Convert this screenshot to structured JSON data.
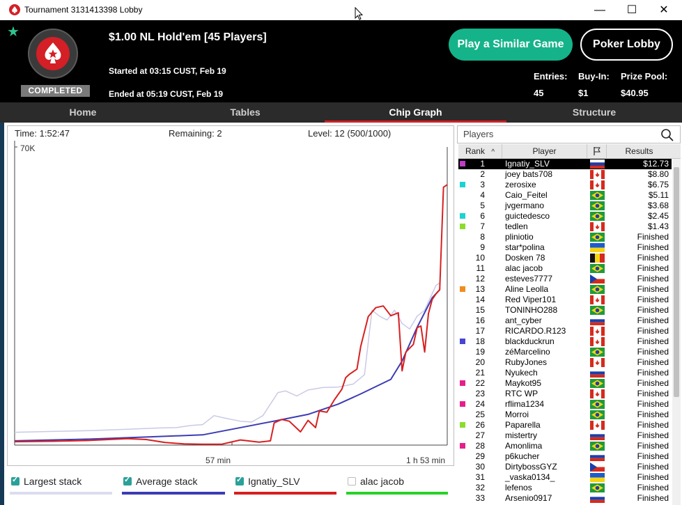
{
  "window": {
    "title": "Tournament 3131413398 Lobby"
  },
  "header": {
    "badge": "COMPLETED",
    "title": "$1.00 NL Hold'em [45 Players]",
    "started": "Started at 03:15 CUST, Feb 19",
    "ended": "Ended at 05:19 CUST, Feb 19",
    "play_similar": "Play a Similar Game",
    "poker_lobby": "Poker Lobby",
    "entries_label": "Entries:",
    "entries": "45",
    "buyin_label": "Buy-In:",
    "buyin": "$1",
    "prizepool_label": "Prize Pool:",
    "prizepool": "$40.95"
  },
  "tabs": [
    "Home",
    "Tables",
    "Chip Graph",
    "Structure"
  ],
  "active_tab": "Chip Graph",
  "chart_header": {
    "time": "Time: 1:52:47",
    "remaining": "Remaining: 2",
    "level": "Level: 12 (500/1000)"
  },
  "chart_data": {
    "type": "line",
    "ytick": "70K",
    "ymax": 70000,
    "xticks": [
      "57 min",
      "1 h 53 min"
    ],
    "xmax": 113,
    "series": [
      {
        "name": "Largest stack",
        "color": "#c9c9e6",
        "points": [
          [
            0,
            3000
          ],
          [
            10,
            3200
          ],
          [
            20,
            3400
          ],
          [
            30,
            3700
          ],
          [
            38,
            4000
          ],
          [
            43,
            4100
          ],
          [
            47,
            4600
          ],
          [
            50,
            4800
          ],
          [
            53,
            6900
          ],
          [
            56,
            6300
          ],
          [
            60,
            5600
          ],
          [
            63,
            5400
          ],
          [
            66,
            6900
          ],
          [
            70,
            12300
          ],
          [
            72,
            12700
          ],
          [
            75,
            11500
          ],
          [
            78,
            12900
          ],
          [
            82,
            13500
          ],
          [
            86,
            13600
          ],
          [
            90,
            14300
          ],
          [
            93,
            16500
          ],
          [
            95,
            31600
          ],
          [
            97,
            30200
          ],
          [
            99,
            29300
          ],
          [
            101,
            31600
          ],
          [
            103,
            28500
          ],
          [
            105,
            27200
          ],
          [
            107,
            30200
          ],
          [
            109,
            31600
          ],
          [
            111,
            35500
          ],
          [
            112,
            37400
          ],
          [
            113,
            38000
          ]
        ]
      },
      {
        "name": "Average stack",
        "color": "#3c3cb4",
        "points": [
          [
            0,
            1000
          ],
          [
            20,
            1400
          ],
          [
            35,
            1900
          ],
          [
            50,
            2400
          ],
          [
            63,
            4600
          ],
          [
            70,
            5800
          ],
          [
            78,
            7200
          ],
          [
            86,
            9600
          ],
          [
            92,
            12000
          ],
          [
            100,
            15400
          ],
          [
            103,
            19700
          ],
          [
            107,
            27600
          ],
          [
            111,
            34500
          ],
          [
            113,
            36400
          ]
        ]
      },
      {
        "name": "Ignatiy_SLV",
        "color": "#d81f1f",
        "points": [
          [
            0,
            800
          ],
          [
            10,
            900
          ],
          [
            20,
            1100
          ],
          [
            30,
            1500
          ],
          [
            35,
            1300
          ],
          [
            40,
            600
          ],
          [
            45,
            300
          ],
          [
            50,
            200
          ],
          [
            55,
            200
          ],
          [
            60,
            1200
          ],
          [
            65,
            700
          ],
          [
            68,
            1000
          ],
          [
            69,
            5200
          ],
          [
            71,
            6000
          ],
          [
            73,
            5600
          ],
          [
            76,
            3100
          ],
          [
            78,
            5800
          ],
          [
            80,
            4100
          ],
          [
            81,
            8000
          ],
          [
            83,
            7700
          ],
          [
            85,
            10600
          ],
          [
            87,
            13100
          ],
          [
            88,
            15800
          ],
          [
            89,
            16600
          ],
          [
            91,
            17800
          ],
          [
            92,
            23100
          ],
          [
            94,
            30100
          ],
          [
            96,
            32200
          ],
          [
            98,
            32600
          ],
          [
            100,
            30300
          ],
          [
            102,
            31000
          ],
          [
            103,
            17400
          ],
          [
            104,
            21800
          ],
          [
            106,
            23600
          ],
          [
            107,
            27500
          ],
          [
            108,
            27900
          ],
          [
            109,
            21800
          ],
          [
            110,
            30800
          ],
          [
            111,
            34100
          ],
          [
            112,
            35400
          ],
          [
            113,
            36400
          ],
          [
            114,
            60400
          ],
          [
            115,
            61000
          ]
        ]
      }
    ]
  },
  "legend": [
    {
      "label": "Largest stack",
      "checked": true,
      "color": "#dcdcf0"
    },
    {
      "label": "Average stack",
      "checked": true,
      "color": "#3c3cb4"
    },
    {
      "label": "Ignatiy_SLV",
      "checked": true,
      "color": "#d81f1f"
    },
    {
      "label": "alac jacob",
      "checked": false,
      "color": "#27d327"
    }
  ],
  "players": {
    "search_label": "Players",
    "col_rank": "Rank",
    "col_player": "Player",
    "col_results": "Results",
    "rows": [
      {
        "rank": "1",
        "name": "Ignatiy_SLV",
        "flag": "ru",
        "result": "$12.73",
        "color": "#c03cc8",
        "selected": true
      },
      {
        "rank": "2",
        "name": "joey bats708",
        "flag": "ca",
        "result": "$8.80",
        "color": ""
      },
      {
        "rank": "3",
        "name": "zerosixe",
        "flag": "ca",
        "result": "$6.75",
        "color": "#1ed2d2"
      },
      {
        "rank": "4",
        "name": "Caio_Feitel",
        "flag": "br",
        "result": "$5.11",
        "color": ""
      },
      {
        "rank": "5",
        "name": "jvgermano",
        "flag": "br",
        "result": "$3.68",
        "color": ""
      },
      {
        "rank": "6",
        "name": "guictedesco",
        "flag": "br",
        "result": "$2.45",
        "color": "#1ed2d2"
      },
      {
        "rank": "7",
        "name": "tedlen",
        "flag": "ca",
        "result": "$1.43",
        "color": "#8cdc2c"
      },
      {
        "rank": "8",
        "name": "pliniotio",
        "flag": "br",
        "result": "Finished",
        "color": ""
      },
      {
        "rank": "9",
        "name": "star*polina",
        "flag": "ua",
        "result": "Finished",
        "color": ""
      },
      {
        "rank": "10",
        "name": "Dosken 78",
        "flag": "be",
        "result": "Finished",
        "color": ""
      },
      {
        "rank": "11",
        "name": "alac jacob",
        "flag": "br",
        "result": "Finished",
        "color": ""
      },
      {
        "rank": "12",
        "name": "esteves7777",
        "flag": "cz",
        "result": "Finished",
        "color": ""
      },
      {
        "rank": "13",
        "name": "Aline Leolla",
        "flag": "br",
        "result": "Finished",
        "color": "#f08c1e"
      },
      {
        "rank": "14",
        "name": "Red Viper101",
        "flag": "ca",
        "result": "Finished",
        "color": ""
      },
      {
        "rank": "15",
        "name": "TONINHO288",
        "flag": "br",
        "result": "Finished",
        "color": ""
      },
      {
        "rank": "16",
        "name": "ant_cyber",
        "flag": "ru",
        "result": "Finished",
        "color": ""
      },
      {
        "rank": "17",
        "name": "RICARDO.R123",
        "flag": "ca",
        "result": "Finished",
        "color": ""
      },
      {
        "rank": "18",
        "name": "blackduckrun",
        "flag": "ca",
        "result": "Finished",
        "color": "#4646d2"
      },
      {
        "rank": "19",
        "name": "zéMarcelino",
        "flag": "br",
        "result": "Finished",
        "color": ""
      },
      {
        "rank": "20",
        "name": "RubyJones",
        "flag": "ca",
        "result": "Finished",
        "color": ""
      },
      {
        "rank": "21",
        "name": "Nyukech",
        "flag": "ru",
        "result": "Finished",
        "color": ""
      },
      {
        "rank": "22",
        "name": "Maykot95",
        "flag": "br",
        "result": "Finished",
        "color": "#e61e8c"
      },
      {
        "rank": "23",
        "name": "RTC WP",
        "flag": "ca",
        "result": "Finished",
        "color": ""
      },
      {
        "rank": "24",
        "name": "rflima1234",
        "flag": "br",
        "result": "Finished",
        "color": "#e61e8c"
      },
      {
        "rank": "25",
        "name": "Morroi",
        "flag": "br",
        "result": "Finished",
        "color": ""
      },
      {
        "rank": "26",
        "name": "Paparella",
        "flag": "ca",
        "result": "Finished",
        "color": "#8cdc2c"
      },
      {
        "rank": "27",
        "name": "mistertry",
        "flag": "ru",
        "result": "Finished",
        "color": ""
      },
      {
        "rank": "28",
        "name": "Amonlima",
        "flag": "br",
        "result": "Finished",
        "color": "#e61e8c"
      },
      {
        "rank": "29",
        "name": "p6kucher",
        "flag": "ru",
        "result": "Finished",
        "color": ""
      },
      {
        "rank": "30",
        "name": "DirtybossGYZ",
        "flag": "cz",
        "result": "Finished",
        "color": ""
      },
      {
        "rank": "31",
        "name": "_vaska0134_",
        "flag": "ua",
        "result": "Finished",
        "color": ""
      },
      {
        "rank": "32",
        "name": "lefenos",
        "flag": "br",
        "result": "Finished",
        "color": ""
      },
      {
        "rank": "33",
        "name": "Arsenio0917",
        "flag": "ru",
        "result": "Finished",
        "color": ""
      }
    ]
  }
}
